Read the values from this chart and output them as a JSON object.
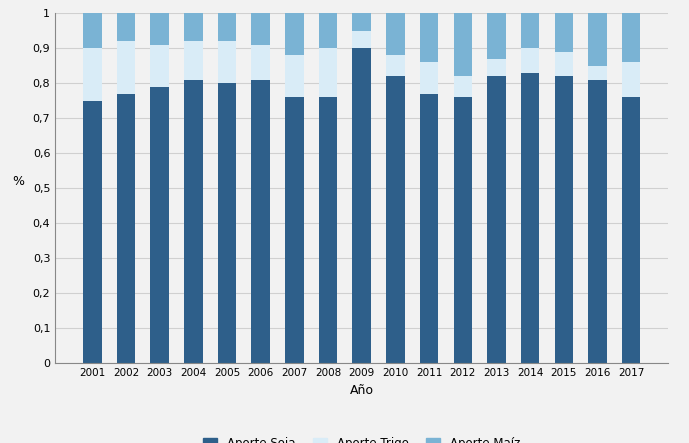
{
  "years": [
    2001,
    2002,
    2003,
    2004,
    2005,
    2006,
    2007,
    2008,
    2009,
    2010,
    2011,
    2012,
    2013,
    2014,
    2015,
    2016,
    2017
  ],
  "soja": [
    0.75,
    0.77,
    0.79,
    0.81,
    0.8,
    0.81,
    0.76,
    0.76,
    0.9,
    0.82,
    0.77,
    0.76,
    0.82,
    0.83,
    0.82,
    0.81,
    0.76
  ],
  "trigo": [
    0.15,
    0.15,
    0.12,
    0.11,
    0.12,
    0.1,
    0.12,
    0.14,
    0.05,
    0.06,
    0.09,
    0.06,
    0.05,
    0.07,
    0.07,
    0.04,
    0.1
  ],
  "maiz": [
    0.1,
    0.08,
    0.09,
    0.08,
    0.08,
    0.09,
    0.12,
    0.1,
    0.05,
    0.12,
    0.14,
    0.18,
    0.13,
    0.1,
    0.11,
    0.15,
    0.14
  ],
  "color_soja": "#2e5f8a",
  "color_trigo": "#d9ecf7",
  "color_maiz": "#7ab3d4",
  "ylabel": "%",
  "xlabel": "Año",
  "ytick_vals": [
    0,
    0.1,
    0.2,
    0.3,
    0.4,
    0.5,
    0.6,
    0.7,
    0.8,
    0.9,
    1
  ],
  "ytick_labels": [
    "0",
    "0,1",
    "0,2",
    "0,3",
    "0,4",
    "0,5",
    "0,6",
    "0,7",
    "0,8",
    "0,9",
    "1"
  ],
  "legend_labels": [
    "Aporte Soja",
    "Aporte Trigo",
    "Aporte Maíz"
  ],
  "bar_width": 0.55,
  "figsize": [
    6.89,
    4.43
  ],
  "dpi": 100,
  "grid_color": "#d0d0d0",
  "bg_color": "#f2f2f2"
}
